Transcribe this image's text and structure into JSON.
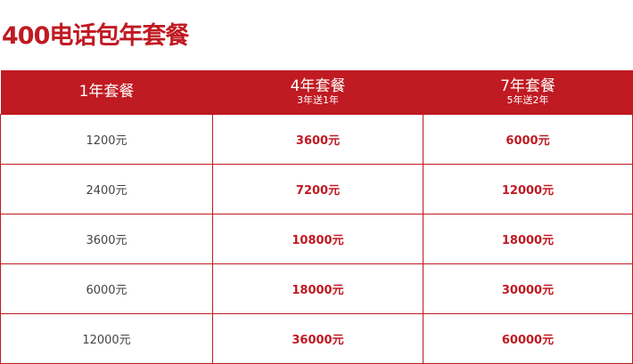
{
  "title": "400电话包年套餐",
  "colors": {
    "accent": "#c01a22"
  },
  "headers": [
    {
      "label": "1年套餐",
      "sub": ""
    },
    {
      "label": "4年套餐",
      "sub": "3年送1年"
    },
    {
      "label": "7年套餐",
      "sub": "5年送2年"
    }
  ],
  "rows": [
    [
      "1200元",
      "3600元",
      "6000元"
    ],
    [
      "2400元",
      "7200元",
      "12000元"
    ],
    [
      "3600元",
      "10800元",
      "18000元"
    ],
    [
      "6000元",
      "18000元",
      "30000元"
    ],
    [
      "12000元",
      "36000元",
      "60000元"
    ]
  ]
}
